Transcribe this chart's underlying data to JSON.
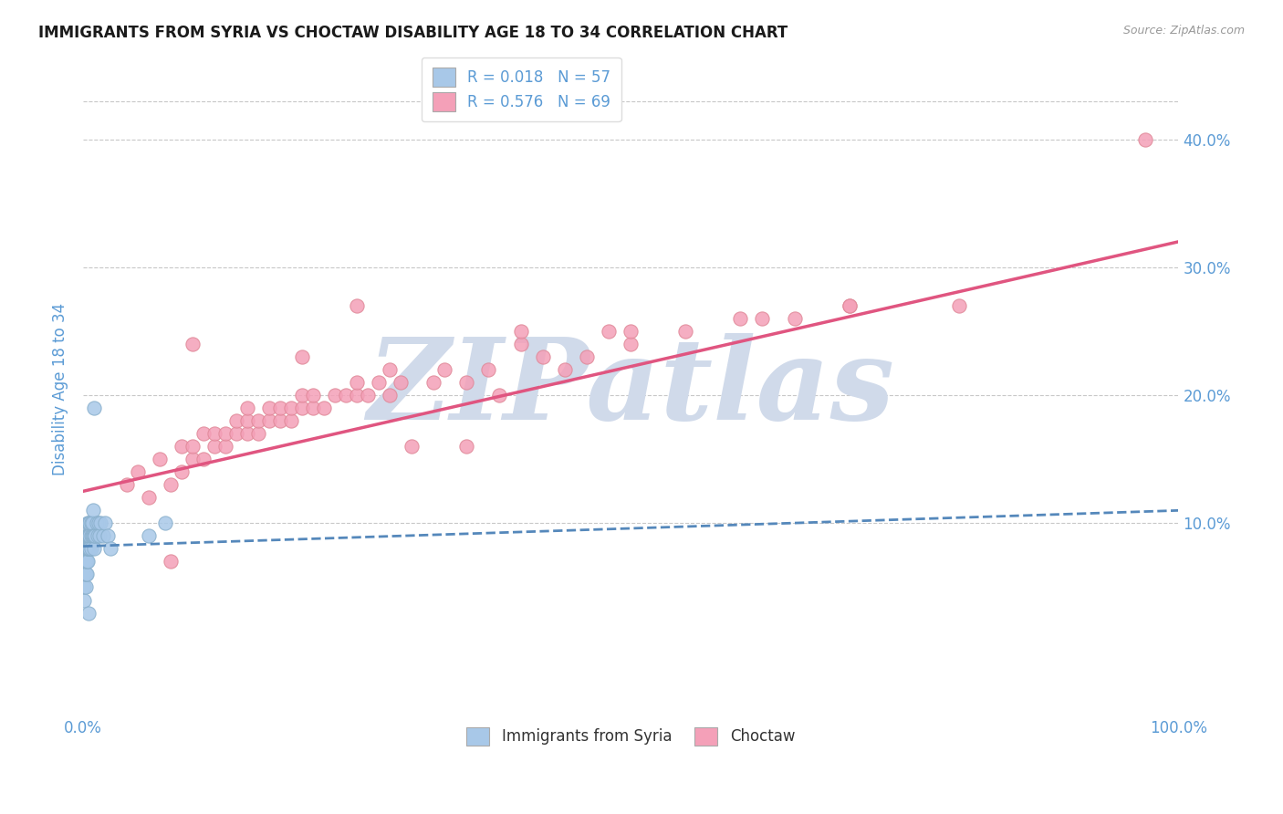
{
  "title": "IMMIGRANTS FROM SYRIA VS CHOCTAW DISABILITY AGE 18 TO 34 CORRELATION CHART",
  "source_text": "Source: ZipAtlas.com",
  "ylabel": "Disability Age 18 to 34",
  "xlim": [
    0.0,
    1.0
  ],
  "ylim": [
    -0.05,
    0.46
  ],
  "yticks": [
    0.1,
    0.2,
    0.3,
    0.4
  ],
  "ytick_labels": [
    "10.0%",
    "20.0%",
    "30.0%",
    "40.0%"
  ],
  "legend_r1": "R = 0.018",
  "legend_n1": "N = 57",
  "legend_r2": "R = 0.576",
  "legend_n2": "N = 69",
  "series1_label": "Immigrants from Syria",
  "series2_label": "Choctaw",
  "blue_color": "#a8c8e8",
  "pink_color": "#f4a0b8",
  "blue_line_color": "#5588bb",
  "pink_line_color": "#e05580",
  "axis_label_color": "#5b9bd5",
  "title_color": "#1a1a1a",
  "background_color": "#ffffff",
  "grid_color": "#c8c8c8",
  "watermark_text": "ZIPatlas",
  "watermark_color": "#d0daea",
  "blue_scatter_x": [
    0.001,
    0.001,
    0.001,
    0.001,
    0.002,
    0.002,
    0.002,
    0.002,
    0.002,
    0.002,
    0.002,
    0.002,
    0.003,
    0.003,
    0.003,
    0.003,
    0.003,
    0.003,
    0.003,
    0.004,
    0.004,
    0.004,
    0.004,
    0.004,
    0.004,
    0.005,
    0.005,
    0.005,
    0.005,
    0.005,
    0.006,
    0.006,
    0.006,
    0.006,
    0.007,
    0.007,
    0.007,
    0.008,
    0.008,
    0.009,
    0.009,
    0.01,
    0.01,
    0.011,
    0.012,
    0.013,
    0.014,
    0.015,
    0.016,
    0.018,
    0.02,
    0.022,
    0.025,
    0.06,
    0.075,
    0.01,
    0.005
  ],
  "blue_scatter_y": [
    0.04,
    0.05,
    0.06,
    0.06,
    0.05,
    0.06,
    0.06,
    0.07,
    0.07,
    0.07,
    0.08,
    0.08,
    0.06,
    0.07,
    0.07,
    0.08,
    0.08,
    0.09,
    0.09,
    0.07,
    0.08,
    0.08,
    0.09,
    0.09,
    0.1,
    0.08,
    0.08,
    0.09,
    0.09,
    0.1,
    0.08,
    0.09,
    0.09,
    0.1,
    0.08,
    0.09,
    0.1,
    0.09,
    0.1,
    0.09,
    0.11,
    0.08,
    0.09,
    0.09,
    0.1,
    0.09,
    0.1,
    0.09,
    0.1,
    0.09,
    0.1,
    0.09,
    0.08,
    0.09,
    0.1,
    0.19,
    0.03
  ],
  "pink_scatter_x": [
    0.04,
    0.05,
    0.06,
    0.07,
    0.08,
    0.09,
    0.09,
    0.1,
    0.1,
    0.11,
    0.11,
    0.12,
    0.12,
    0.13,
    0.13,
    0.14,
    0.14,
    0.15,
    0.15,
    0.15,
    0.16,
    0.16,
    0.17,
    0.17,
    0.18,
    0.18,
    0.19,
    0.19,
    0.2,
    0.2,
    0.21,
    0.21,
    0.22,
    0.23,
    0.24,
    0.25,
    0.25,
    0.26,
    0.27,
    0.28,
    0.28,
    0.29,
    0.3,
    0.32,
    0.33,
    0.35,
    0.37,
    0.38,
    0.4,
    0.42,
    0.44,
    0.46,
    0.48,
    0.5,
    0.08,
    0.35,
    0.5,
    0.6,
    0.65,
    0.7,
    0.97,
    0.4,
    0.55,
    0.62,
    0.7,
    0.8,
    0.1,
    0.2,
    0.25
  ],
  "pink_scatter_y": [
    0.13,
    0.14,
    0.12,
    0.15,
    0.13,
    0.14,
    0.16,
    0.15,
    0.16,
    0.15,
    0.17,
    0.16,
    0.17,
    0.16,
    0.17,
    0.17,
    0.18,
    0.17,
    0.18,
    0.19,
    0.17,
    0.18,
    0.18,
    0.19,
    0.18,
    0.19,
    0.18,
    0.19,
    0.19,
    0.2,
    0.19,
    0.2,
    0.19,
    0.2,
    0.2,
    0.2,
    0.21,
    0.2,
    0.21,
    0.2,
    0.22,
    0.21,
    0.16,
    0.21,
    0.22,
    0.21,
    0.22,
    0.2,
    0.24,
    0.23,
    0.22,
    0.23,
    0.25,
    0.24,
    0.07,
    0.16,
    0.25,
    0.26,
    0.26,
    0.27,
    0.4,
    0.25,
    0.25,
    0.26,
    0.27,
    0.27,
    0.24,
    0.23,
    0.27
  ],
  "blue_trend_x": [
    0.0,
    1.0
  ],
  "blue_trend_y": [
    0.082,
    0.11
  ],
  "pink_trend_x": [
    0.0,
    1.0
  ],
  "pink_trend_y": [
    0.125,
    0.32
  ]
}
